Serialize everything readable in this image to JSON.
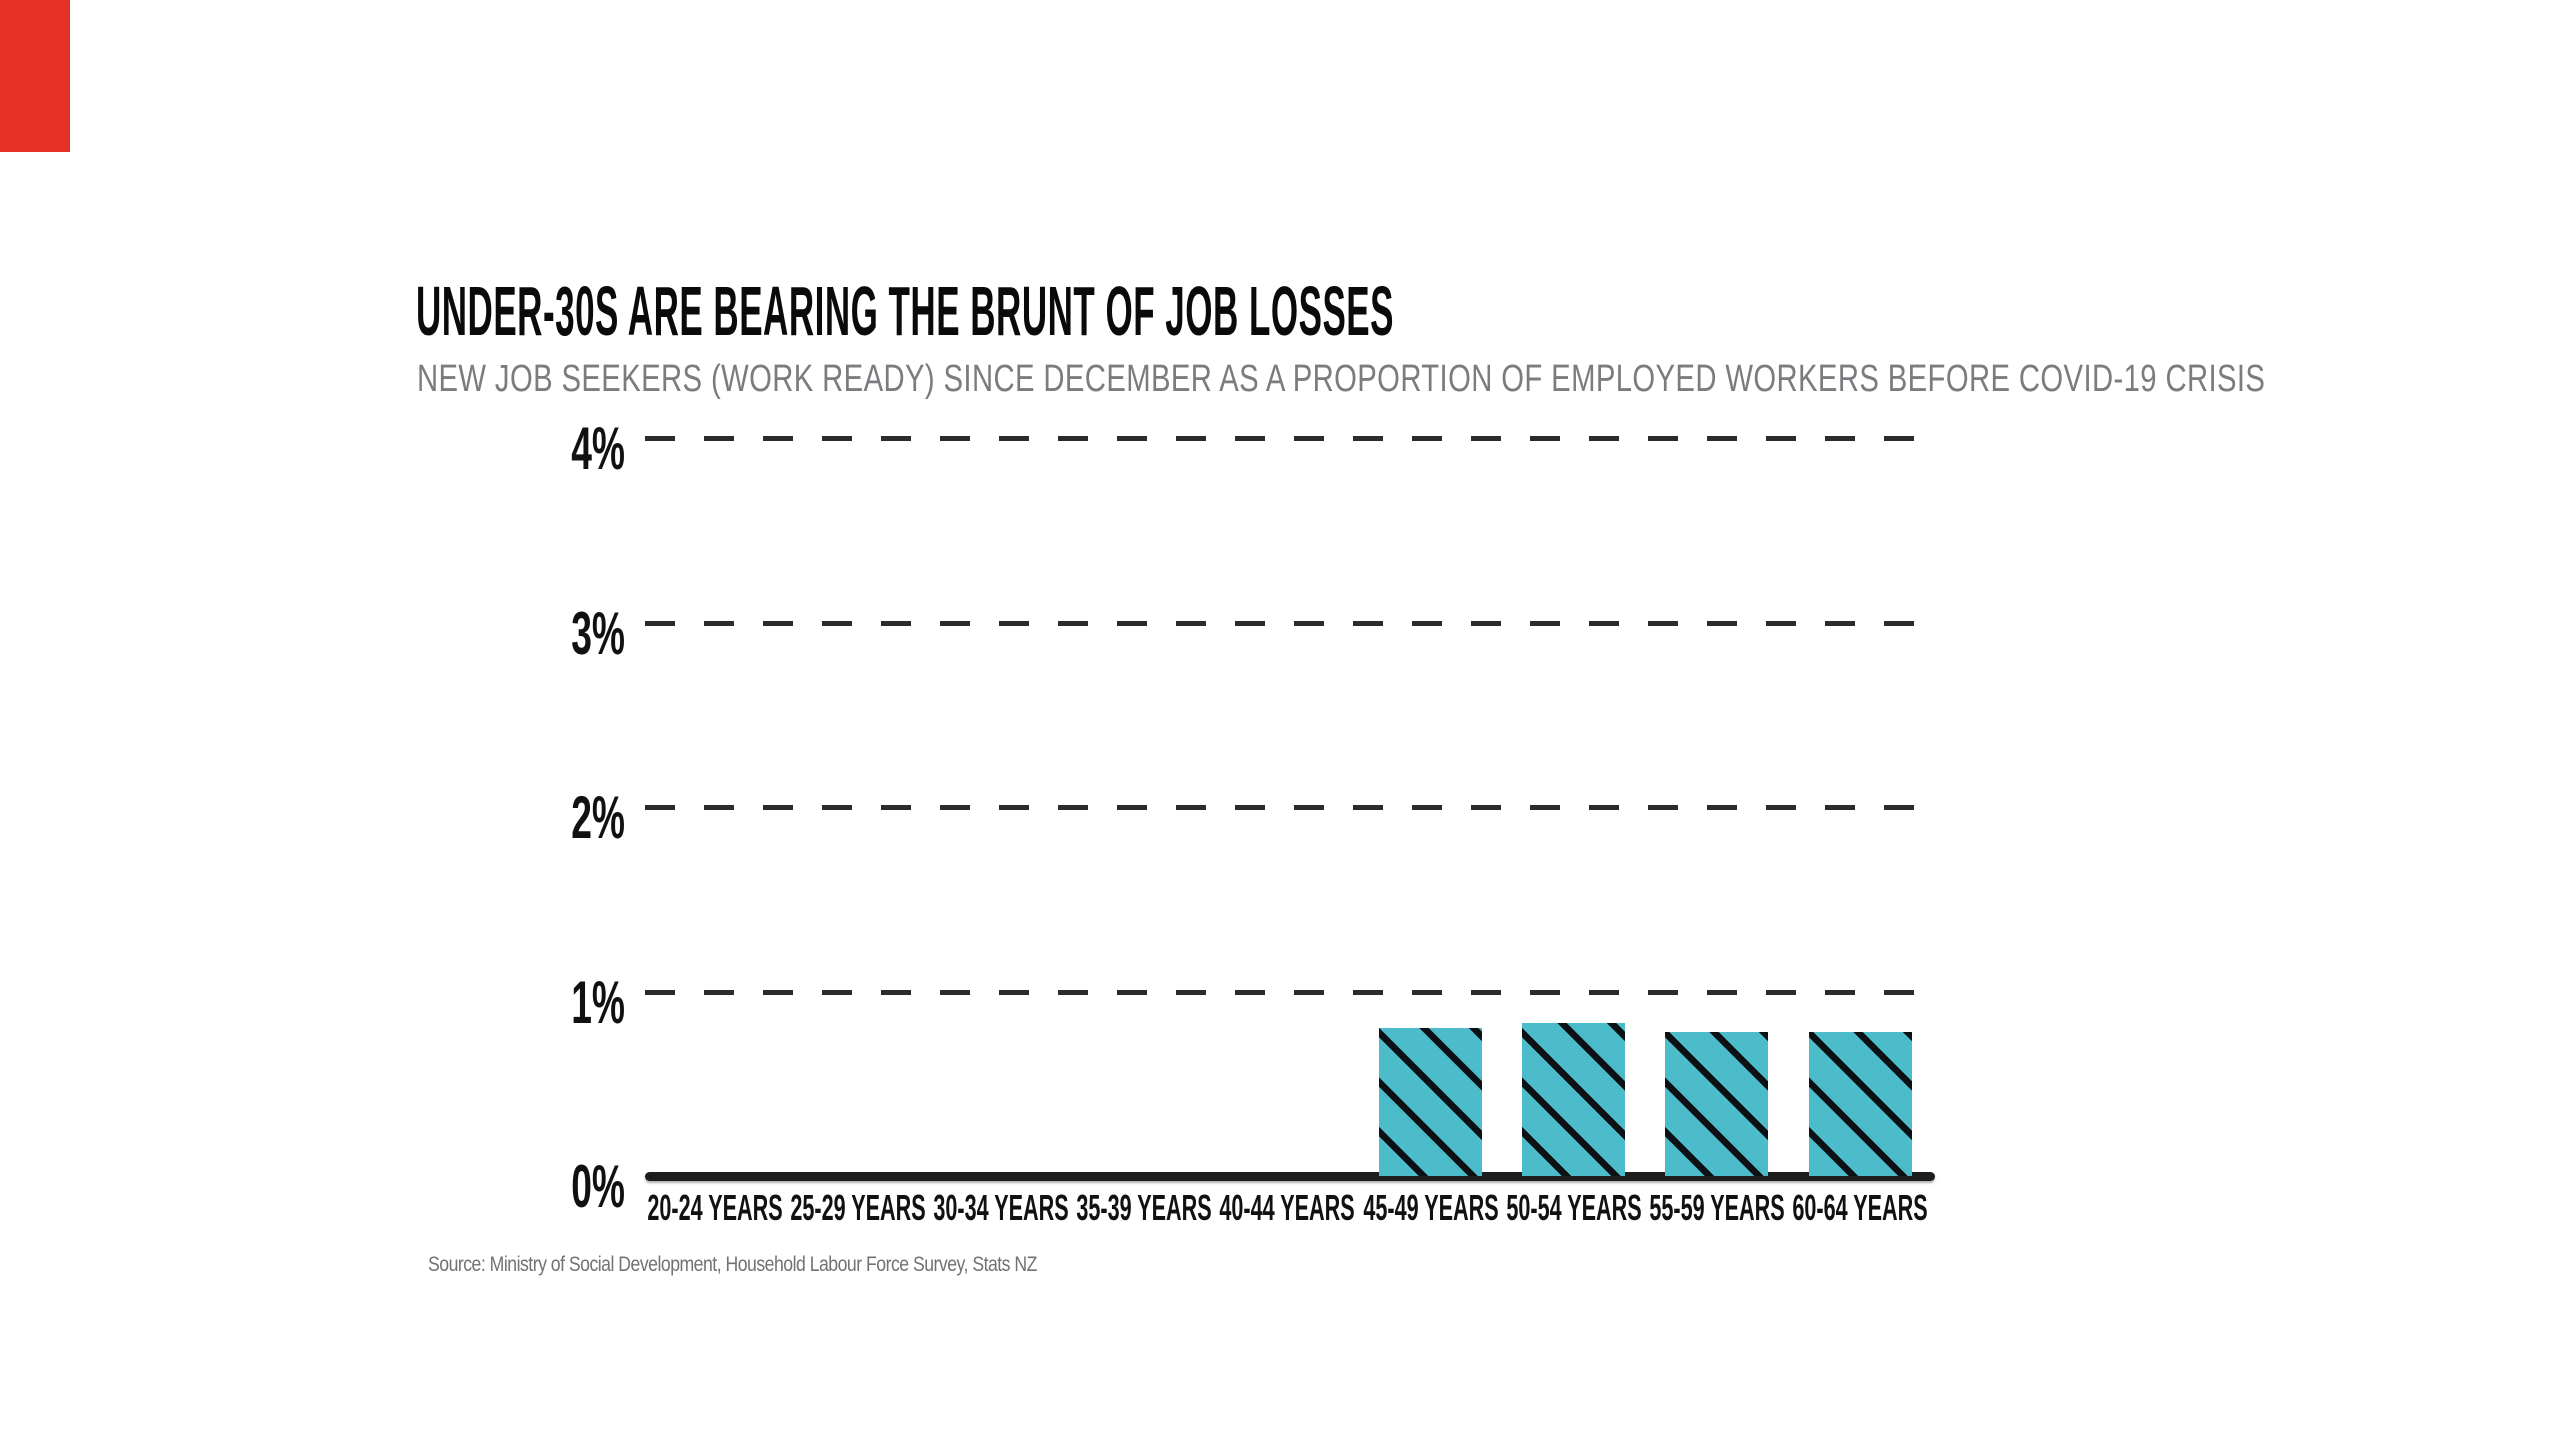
{
  "page": {
    "background": "#ffffff"
  },
  "corner_mark": {
    "color": "#e53125"
  },
  "header": {
    "title": "UNDER-30S ARE BEARING THE BRUNT OF JOB LOSSES",
    "subtitle": "NEW JOB SEEKERS (WORK READY) SINCE DECEMBER AS A PROPORTION OF EMPLOYED WORKERS BEFORE COVID-19 CRISIS"
  },
  "source": {
    "text": "Source: Ministry of Social Development, Household Labour Force Survey, Stats NZ"
  },
  "chart_data": {
    "type": "bar",
    "title": "UNDER-30S ARE BEARING THE BRUNT OF JOB LOSSES",
    "subtitle": "NEW JOB SEEKERS (WORK READY) SINCE DECEMBER AS A PROPORTION OF EMPLOYED WORKERS BEFORE COVID-19 CRISIS",
    "categories": [
      "20-24 YEARS",
      "25-29 YEARS",
      "30-34 YEARS",
      "35-39 YEARS",
      "40-44 YEARS",
      "45-49 YEARS",
      "50-54 YEARS",
      "55-59 YEARS",
      "60-64 YEARS"
    ],
    "values": [
      0,
      0,
      0,
      0,
      0,
      0.8,
      0.83,
      0.78,
      0.78
    ],
    "unit": "%",
    "xlabel": "",
    "ylabel": "",
    "ylim": [
      0,
      4
    ],
    "ytick_values": [
      0,
      1,
      2,
      3,
      4
    ],
    "ytick_labels": [
      "0%",
      "1%",
      "2%",
      "3%",
      "4%"
    ],
    "grid": "horizontal dashed",
    "legend": "none",
    "bar_color": "#4cbcca",
    "hatch_color": "#0c1115",
    "hatch_pattern": "diagonal-down",
    "grid_color": "#2b2b2b",
    "axis_color": "#1d1d1d"
  }
}
